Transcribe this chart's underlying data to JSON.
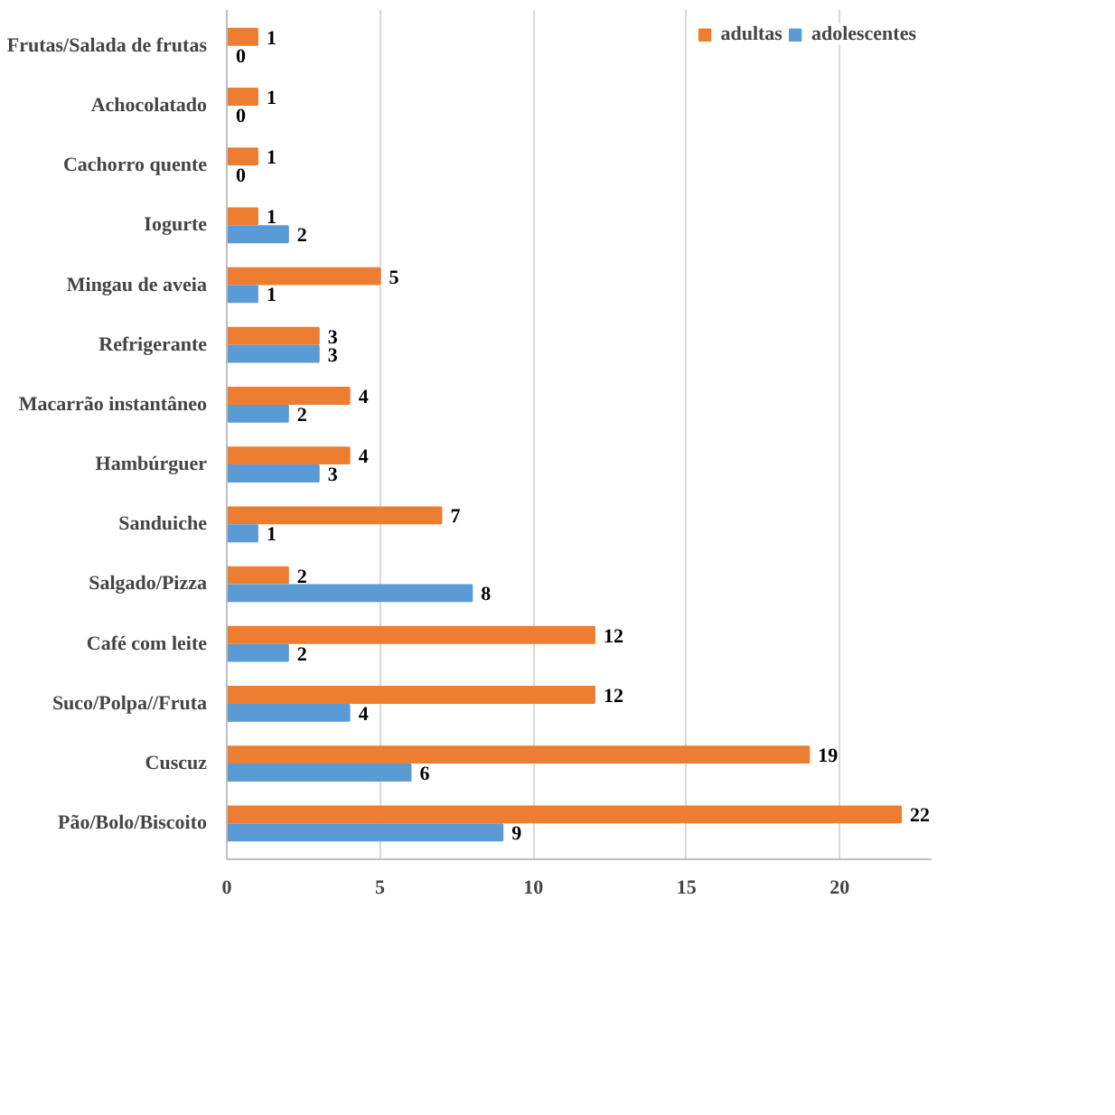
{
  "chart_data": {
    "type": "bar",
    "orientation": "horizontal",
    "categories": [
      "Frutas/Salada de frutas",
      "Achocolatado",
      "Cachorro quente",
      "Iogurte",
      "Mingau de aveia",
      "Refrigerante",
      "Macarrão instantâneo",
      "Hambúrguer",
      "Sanduiche",
      "Salgado/Pizza",
      "Café com leite",
      "Suco/Polpa//Fruta",
      "Cuscuz",
      "Pão/Bolo/Biscoito"
    ],
    "series": [
      {
        "name": "adultas",
        "color": "#ed7d31",
        "values": [
          1,
          1,
          1,
          1,
          5,
          3,
          4,
          4,
          7,
          2,
          12,
          12,
          19,
          22
        ]
      },
      {
        "name": "adolescentes",
        "color": "#5b9bd5",
        "values": [
          0,
          0,
          0,
          2,
          1,
          3,
          2,
          3,
          1,
          8,
          2,
          4,
          6,
          9
        ]
      }
    ],
    "xlim": [
      0,
      23
    ],
    "xticks": [
      0,
      5,
      10,
      15,
      20
    ],
    "grid": "x",
    "data_labels": true,
    "legend": "top right"
  }
}
